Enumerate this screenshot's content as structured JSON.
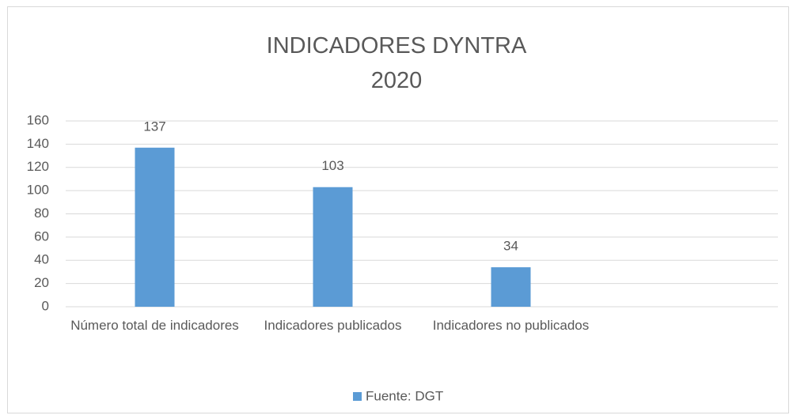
{
  "chart_data": {
    "type": "bar",
    "title": "INDICADORES DYNTRA 2020",
    "categories": [
      "Número total de indicadores",
      "Indicadores publicados",
      "Indicadores no publicados",
      null
    ],
    "series": [
      {
        "name": "Fuente: DGT",
        "color": "#5b9bd5",
        "values": [
          137,
          103,
          34,
          null
        ]
      }
    ],
    "ylim": [
      0,
      160
    ],
    "yticks": [
      0,
      20,
      40,
      60,
      80,
      100,
      120,
      140,
      160
    ],
    "grid": true,
    "legend": "bottom"
  }
}
